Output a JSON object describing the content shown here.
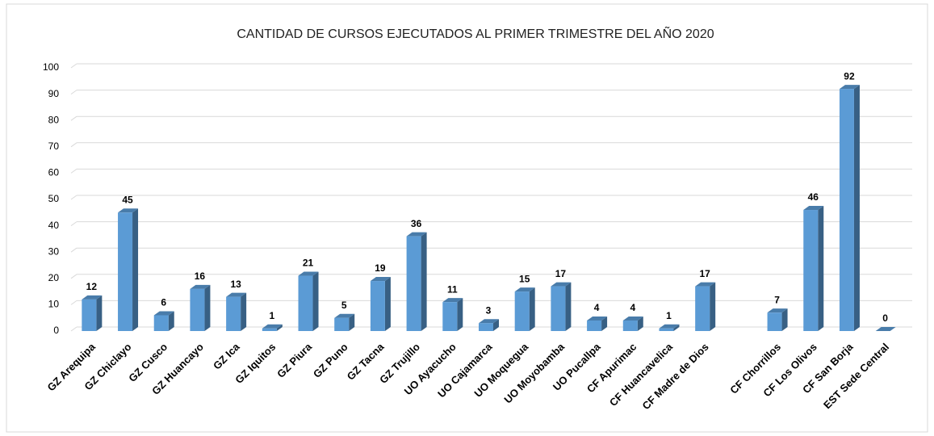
{
  "chart_data": {
    "type": "bar",
    "title": "CANTIDAD DE CURSOS EJECUTADOS AL PRIMER TRIMESTRE DEL AÑO 2020",
    "categories": [
      "GZ Arequipa",
      "GZ Chiclayo",
      "GZ Cusco",
      "GZ Huancayo",
      "GZ Ica",
      "GZ Iquitos",
      "GZ Piura",
      "GZ Puno",
      "GZ Tacna",
      "GZ Trujillo",
      "UO Ayacucho",
      "UO Cajamarca",
      "UO Moquegua",
      "UO Moyobamba",
      "UO Pucallpa",
      "CF Apurimac",
      "CF Huancavelica",
      "CF Madre de Dios",
      null,
      "CF Chorrillos",
      "CF Los Olivos",
      "CF San Borja",
      "EST Sede Central"
    ],
    "values": [
      12,
      45,
      6,
      16,
      13,
      1,
      21,
      5,
      19,
      36,
      11,
      3,
      15,
      17,
      4,
      4,
      1,
      17,
      null,
      7,
      46,
      92,
      0
    ],
    "color": "#5b9bd5",
    "ylim": [
      0,
      100
    ],
    "yticks": [
      0,
      10,
      20,
      30,
      40,
      50,
      60,
      70,
      80,
      90,
      100
    ],
    "grid": true
  }
}
